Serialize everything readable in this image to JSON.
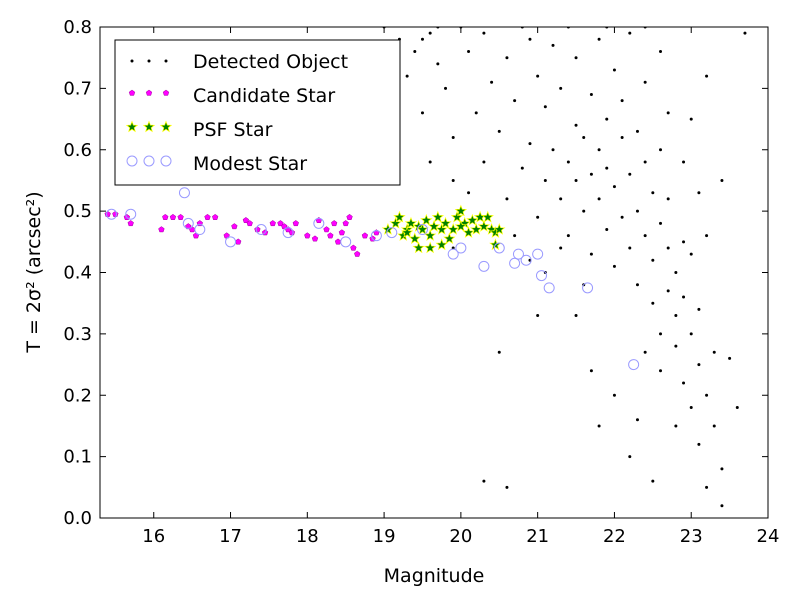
{
  "chart_data": {
    "type": "scatter",
    "xlabel": "Magnitude",
    "ylabel": "T = 2σ² (arcsec²)",
    "xlim": [
      15.3,
      24
    ],
    "ylim": [
      0.0,
      0.8
    ],
    "x_ticks": [
      "16",
      "17",
      "18",
      "19",
      "20",
      "21",
      "22",
      "23",
      "24"
    ],
    "y_ticks": [
      "0.0",
      "0.1",
      "0.2",
      "0.3",
      "0.4",
      "0.5",
      "0.6",
      "0.7",
      "0.8"
    ],
    "legend_position": "top-left",
    "colors": {
      "detected": "#000000",
      "candidate": "#ff00ff",
      "psf_fill": "#008000",
      "psf_edge": "#ffff00",
      "modest": "#9a9aff"
    },
    "series": [
      {
        "name": "Detected Object",
        "marker": "dot",
        "points": [
          [
            19.2,
            0.78
          ],
          [
            19.4,
            0.76
          ],
          [
            19.6,
            0.79
          ],
          [
            19.3,
            0.72
          ],
          [
            19.5,
            0.66
          ],
          [
            19.7,
            0.74
          ],
          [
            19.9,
            0.62
          ],
          [
            19.8,
            0.7
          ],
          [
            19.6,
            0.58
          ],
          [
            19.9,
            0.55
          ],
          [
            20.1,
            0.76
          ],
          [
            20.3,
            0.79
          ],
          [
            20.2,
            0.66
          ],
          [
            20.4,
            0.71
          ],
          [
            20.3,
            0.58
          ],
          [
            20.1,
            0.53
          ],
          [
            20.5,
            0.63
          ],
          [
            20.6,
            0.75
          ],
          [
            20.7,
            0.68
          ],
          [
            20.8,
            0.57
          ],
          [
            20.6,
            0.52
          ],
          [
            20.9,
            0.78
          ],
          [
            20.9,
            0.61
          ],
          [
            21.0,
            0.72
          ],
          [
            21.0,
            0.49
          ],
          [
            21.1,
            0.55
          ],
          [
            21.1,
            0.67
          ],
          [
            21.2,
            0.77
          ],
          [
            21.2,
            0.6
          ],
          [
            21.3,
            0.52
          ],
          [
            21.3,
            0.7
          ],
          [
            21.4,
            0.58
          ],
          [
            21.4,
            0.46
          ],
          [
            21.5,
            0.64
          ],
          [
            21.5,
            0.75
          ],
          [
            21.5,
            0.55
          ],
          [
            21.6,
            0.5
          ],
          [
            21.6,
            0.62
          ],
          [
            21.7,
            0.56
          ],
          [
            21.7,
            0.69
          ],
          [
            21.7,
            0.43
          ],
          [
            21.8,
            0.6
          ],
          [
            21.8,
            0.52
          ],
          [
            21.8,
            0.78
          ],
          [
            21.9,
            0.65
          ],
          [
            21.9,
            0.47
          ],
          [
            21.9,
            0.57
          ],
          [
            22.0,
            0.73
          ],
          [
            22.0,
            0.54
          ],
          [
            22.0,
            0.41
          ],
          [
            22.1,
            0.62
          ],
          [
            22.1,
            0.49
          ],
          [
            22.1,
            0.68
          ],
          [
            22.2,
            0.56
          ],
          [
            22.2,
            0.44
          ],
          [
            22.2,
            0.79
          ],
          [
            22.3,
            0.5
          ],
          [
            22.3,
            0.63
          ],
          [
            22.3,
            0.38
          ],
          [
            22.4,
            0.58
          ],
          [
            22.4,
            0.46
          ],
          [
            22.4,
            0.71
          ],
          [
            22.5,
            0.42
          ],
          [
            22.5,
            0.53
          ],
          [
            22.5,
            0.35
          ],
          [
            22.6,
            0.48
          ],
          [
            22.6,
            0.6
          ],
          [
            22.6,
            0.3
          ],
          [
            22.7,
            0.44
          ],
          [
            22.7,
            0.37
          ],
          [
            22.7,
            0.52
          ],
          [
            22.8,
            0.4
          ],
          [
            22.8,
            0.28
          ],
          [
            22.8,
            0.33
          ],
          [
            22.9,
            0.45
          ],
          [
            22.9,
            0.22
          ],
          [
            22.9,
            0.36
          ],
          [
            23.0,
            0.3
          ],
          [
            23.0,
            0.18
          ],
          [
            23.0,
            0.43
          ],
          [
            23.1,
            0.25
          ],
          [
            23.1,
            0.12
          ],
          [
            23.1,
            0.34
          ],
          [
            23.2,
            0.2
          ],
          [
            23.2,
            0.05
          ],
          [
            23.3,
            0.15
          ],
          [
            23.3,
            0.27
          ],
          [
            23.4,
            0.08
          ],
          [
            23.4,
            0.02
          ],
          [
            23.5,
            0.26
          ],
          [
            23.6,
            0.18
          ],
          [
            23.7,
            0.79
          ],
          [
            23.4,
            0.55
          ],
          [
            23.2,
            0.46
          ],
          [
            22.0,
            0.2
          ],
          [
            22.2,
            0.1
          ],
          [
            22.5,
            0.06
          ],
          [
            22.3,
            0.16
          ],
          [
            21.7,
            0.24
          ],
          [
            21.5,
            0.33
          ],
          [
            21.8,
            0.15
          ],
          [
            20.5,
            0.27
          ],
          [
            20.3,
            0.06
          ],
          [
            20.6,
            0.05
          ],
          [
            19.9,
            0.44
          ],
          [
            20.7,
            0.46
          ],
          [
            20.9,
            0.42
          ],
          [
            21.1,
            0.4
          ],
          [
            21.3,
            0.44
          ],
          [
            21.6,
            0.38
          ],
          [
            19.5,
            0.78
          ],
          [
            19.0,
            0.8
          ],
          [
            19.7,
            0.8
          ],
          [
            20.0,
            0.8
          ],
          [
            21.9,
            0.8
          ],
          [
            22.4,
            0.8
          ],
          [
            20.8,
            0.8
          ],
          [
            21.4,
            0.8
          ],
          [
            22.6,
            0.76
          ],
          [
            23.0,
            0.65
          ],
          [
            22.9,
            0.58
          ],
          [
            23.2,
            0.72
          ],
          [
            22.7,
            0.66
          ],
          [
            21.0,
            0.33
          ],
          [
            22.6,
            0.24
          ],
          [
            22.4,
            0.27
          ],
          [
            23.1,
            0.53
          ],
          [
            22.8,
            0.15
          ]
        ]
      },
      {
        "name": "Candidate Star",
        "marker": "pentagon",
        "points": [
          [
            15.4,
            0.495
          ],
          [
            15.5,
            0.495
          ],
          [
            15.65,
            0.49
          ],
          [
            15.7,
            0.48
          ],
          [
            16.1,
            0.47
          ],
          [
            16.15,
            0.49
          ],
          [
            16.25,
            0.49
          ],
          [
            16.35,
            0.49
          ],
          [
            16.45,
            0.475
          ],
          [
            16.5,
            0.47
          ],
          [
            16.55,
            0.46
          ],
          [
            16.6,
            0.48
          ],
          [
            16.7,
            0.49
          ],
          [
            16.8,
            0.49
          ],
          [
            16.95,
            0.46
          ],
          [
            17.05,
            0.475
          ],
          [
            17.1,
            0.45
          ],
          [
            17.2,
            0.485
          ],
          [
            17.25,
            0.48
          ],
          [
            17.35,
            0.47
          ],
          [
            17.45,
            0.465
          ],
          [
            17.55,
            0.48
          ],
          [
            17.65,
            0.48
          ],
          [
            17.7,
            0.475
          ],
          [
            17.75,
            0.47
          ],
          [
            17.8,
            0.465
          ],
          [
            17.85,
            0.48
          ],
          [
            18.0,
            0.46
          ],
          [
            18.1,
            0.455
          ],
          [
            18.15,
            0.485
          ],
          [
            18.25,
            0.47
          ],
          [
            18.3,
            0.46
          ],
          [
            18.35,
            0.48
          ],
          [
            18.4,
            0.45
          ],
          [
            18.45,
            0.465
          ],
          [
            18.5,
            0.48
          ],
          [
            18.55,
            0.49
          ],
          [
            18.6,
            0.44
          ],
          [
            18.65,
            0.43
          ],
          [
            18.75,
            0.46
          ],
          [
            18.85,
            0.455
          ],
          [
            18.9,
            0.465
          ]
        ]
      },
      {
        "name": "PSF Star",
        "marker": "star",
        "points": [
          [
            19.05,
            0.47
          ],
          [
            19.15,
            0.48
          ],
          [
            19.2,
            0.49
          ],
          [
            19.25,
            0.46
          ],
          [
            19.3,
            0.47
          ],
          [
            19.35,
            0.48
          ],
          [
            19.4,
            0.455
          ],
          [
            19.45,
            0.475
          ],
          [
            19.5,
            0.47
          ],
          [
            19.55,
            0.485
          ],
          [
            19.6,
            0.46
          ],
          [
            19.65,
            0.475
          ],
          [
            19.7,
            0.49
          ],
          [
            19.75,
            0.47
          ],
          [
            19.8,
            0.48
          ],
          [
            19.85,
            0.455
          ],
          [
            19.9,
            0.47
          ],
          [
            19.95,
            0.49
          ],
          [
            20.0,
            0.5
          ],
          [
            20.05,
            0.48
          ],
          [
            20.1,
            0.465
          ],
          [
            20.15,
            0.485
          ],
          [
            20.2,
            0.47
          ],
          [
            20.25,
            0.49
          ],
          [
            20.3,
            0.475
          ],
          [
            20.35,
            0.49
          ],
          [
            20.4,
            0.47
          ],
          [
            20.45,
            0.465
          ],
          [
            20.5,
            0.47
          ],
          [
            19.45,
            0.44
          ],
          [
            19.6,
            0.44
          ],
          [
            19.75,
            0.445
          ],
          [
            20.45,
            0.445
          ],
          [
            19.3,
            0.465
          ],
          [
            20.0,
            0.475
          ]
        ]
      },
      {
        "name": "Modest Star",
        "marker": "circle",
        "points": [
          [
            15.45,
            0.495
          ],
          [
            15.7,
            0.495
          ],
          [
            16.4,
            0.53
          ],
          [
            16.45,
            0.48
          ],
          [
            16.6,
            0.47
          ],
          [
            17.0,
            0.45
          ],
          [
            17.4,
            0.47
          ],
          [
            17.75,
            0.465
          ],
          [
            18.15,
            0.48
          ],
          [
            18.5,
            0.45
          ],
          [
            18.9,
            0.46
          ],
          [
            19.1,
            0.465
          ],
          [
            19.5,
            0.47
          ],
          [
            19.9,
            0.43
          ],
          [
            20.0,
            0.44
          ],
          [
            20.3,
            0.41
          ],
          [
            20.5,
            0.44
          ],
          [
            20.7,
            0.415
          ],
          [
            20.85,
            0.42
          ],
          [
            21.0,
            0.43
          ],
          [
            21.05,
            0.395
          ],
          [
            21.15,
            0.375
          ],
          [
            21.65,
            0.375
          ],
          [
            22.25,
            0.25
          ],
          [
            20.75,
            0.43
          ]
        ]
      }
    ]
  }
}
